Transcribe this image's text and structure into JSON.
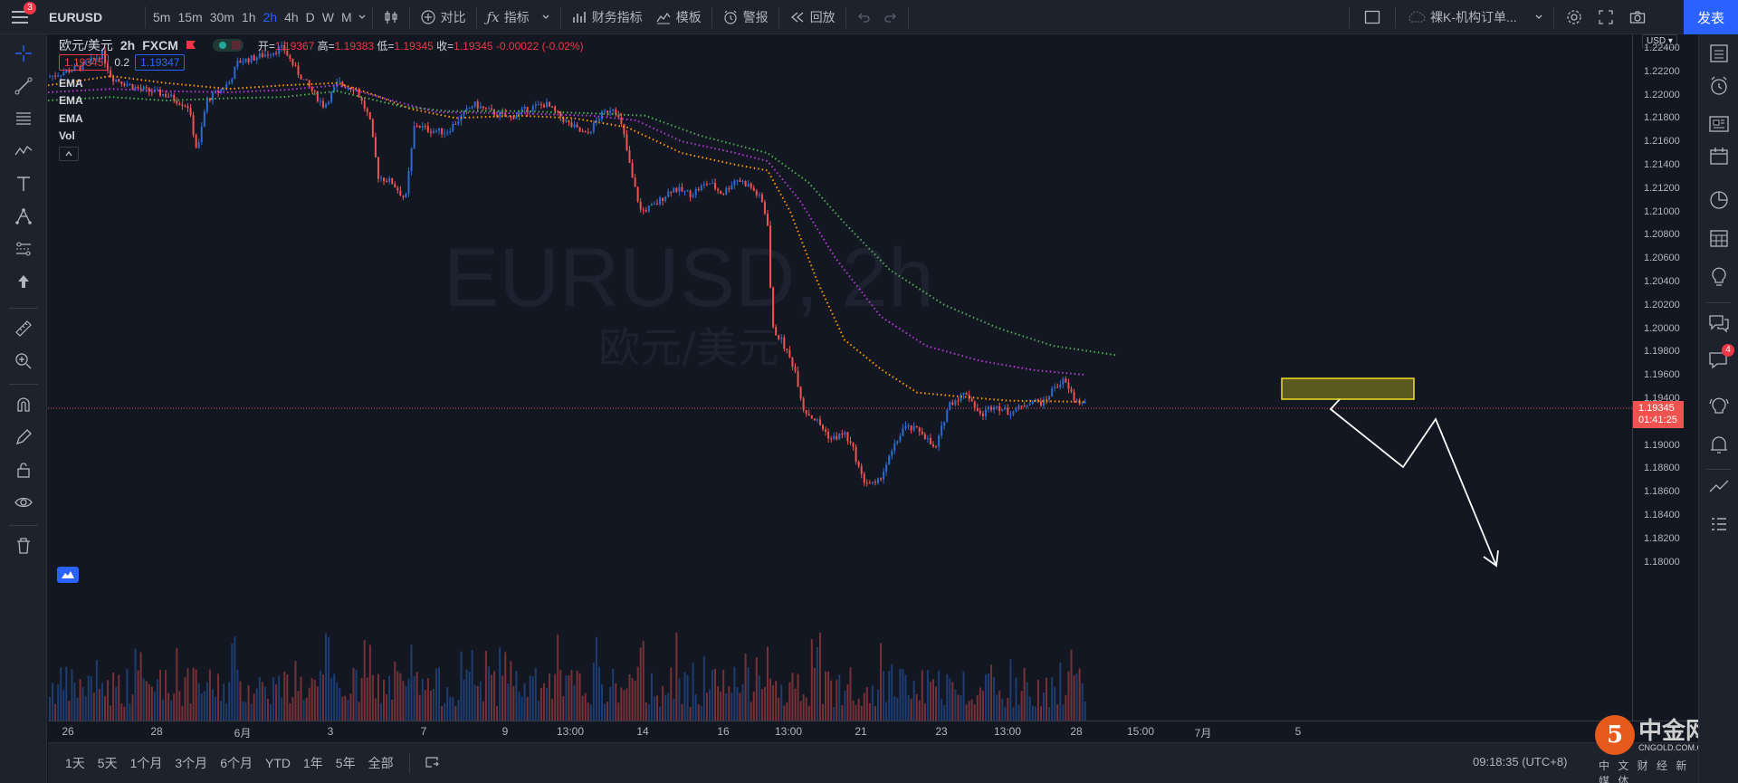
{
  "topbar": {
    "menu_badge": "3",
    "symbol": "EURUSD",
    "timeframes": [
      "5m",
      "15m",
      "30m",
      "1h",
      "2h",
      "4h",
      "D",
      "W",
      "M"
    ],
    "active_timeframe": "2h",
    "compare": "对比",
    "indicators": "指标",
    "financials": "财务指标",
    "templates": "模板",
    "alert": "警报",
    "replay": "回放",
    "layout_name": "裸K-机构订单...",
    "publish": "发表"
  },
  "legend": {
    "title": "欧元/美元",
    "interval": "2h",
    "source": "FXCM",
    "open_label": "开=",
    "open": "1.19367",
    "high_label": "高=",
    "high": "1.19383",
    "low_label": "低=",
    "low": "1.19345",
    "close_label": "收=",
    "close": "1.19345",
    "change": "-0.00022 (-0.02%)",
    "bid": "1.19345",
    "spread": "0.2",
    "ask": "1.19347",
    "indicators": [
      "EMA",
      "EMA",
      "EMA",
      "Vol"
    ]
  },
  "watermark": {
    "symbol": "EURUSD, 2h",
    "name": "欧元/美元"
  },
  "price_axis": {
    "currency": "USD",
    "ticks": [
      "1.22400",
      "1.22200",
      "1.22000",
      "1.21800",
      "1.21600",
      "1.21400",
      "1.21200",
      "1.21000",
      "1.20800",
      "1.20600",
      "1.20400",
      "1.20200",
      "1.20000",
      "1.19800",
      "1.19600",
      "1.19400",
      "1.19200",
      "1.19000",
      "1.18800",
      "1.18600",
      "1.18400",
      "1.18200",
      "1.18000"
    ],
    "last_price": "1.19345",
    "countdown": "01:41:25"
  },
  "time_axis": {
    "ticks": [
      "26",
      "28",
      "6月",
      "3",
      "7",
      "9",
      "13:00",
      "14",
      "16",
      "13:00",
      "21",
      "23",
      "13:00",
      "28",
      "15:00",
      "7月",
      "5"
    ]
  },
  "bottom": {
    "ranges": [
      "1天",
      "5天",
      "1个月",
      "3个月",
      "6个月",
      "YTD",
      "1年",
      "5年",
      "全部"
    ],
    "clock": "09:18:35 (UTC+8)",
    "footer": "中 文 财 经 新 媒 体",
    "brand": "中金网",
    "brand_url": "CNGOLD.COM.CN"
  },
  "right_sidebar": {
    "chat_badge": "4"
  },
  "colors": {
    "up": "#2a6bd1",
    "down": "#ef5350",
    "ema_fast": "#ff9800",
    "ema_mid": "#b53ad6",
    "ema_slow": "#4caf50",
    "accent": "#2962ff"
  }
}
